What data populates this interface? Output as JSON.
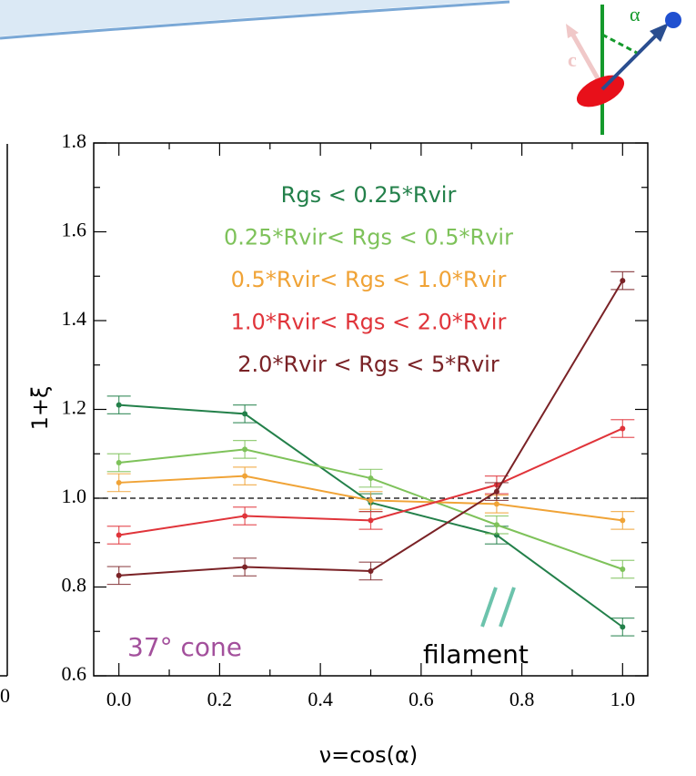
{
  "chart_data": {
    "type": "line",
    "xlabel": "ν=cos(α)",
    "ylabel": "1+ξ",
    "x": [
      0.0,
      0.25,
      0.5,
      0.75,
      1.0
    ],
    "series": [
      {
        "name": "Rgs < 0.25*Rvir",
        "color": "#23804a",
        "values": [
          1.21,
          1.19,
          0.99,
          0.917,
          0.71
        ],
        "errors": [
          0.02,
          0.02,
          0.02,
          0.02,
          0.02
        ]
      },
      {
        "name": "0.25*Rvir< Rgs < 0.5*Rvir",
        "color": "#7ec25a",
        "values": [
          1.08,
          1.11,
          1.045,
          0.94,
          0.84
        ],
        "errors": [
          0.02,
          0.02,
          0.02,
          0.02,
          0.02
        ]
      },
      {
        "name": "0.5*Rvir< Rgs < 1.0*Rvir",
        "color": "#f0a336",
        "values": [
          1.035,
          1.05,
          0.995,
          0.987,
          0.95
        ],
        "errors": [
          0.02,
          0.02,
          0.02,
          0.02,
          0.02
        ]
      },
      {
        "name": "1.0*Rvir< Rgs < 2.0*Rvir",
        "color": "#e0343a",
        "values": [
          0.917,
          0.96,
          0.95,
          1.03,
          1.157
        ],
        "errors": [
          0.02,
          0.02,
          0.02,
          0.02,
          0.02
        ]
      },
      {
        "name": "2.0*Rvir < Rgs < 5*Rvir",
        "color": "#7a2226",
        "values": [
          0.826,
          0.845,
          0.836,
          1.015,
          1.49
        ],
        "errors": [
          0.02,
          0.02,
          0.02,
          0.02,
          0.02
        ]
      }
    ],
    "xlim": [
      -0.05,
      1.05
    ],
    "ylim": [
      0.6,
      1.8
    ],
    "xticks": [
      {
        "value": 0.0,
        "label": "0.0"
      },
      0.2,
      0.4,
      0.6,
      0.8,
      {
        "value": 1.0,
        "label": "1.0"
      }
    ],
    "yticks": [
      0.6,
      0.8,
      {
        "value": 1.0,
        "label": "1.0"
      },
      1.2,
      1.4,
      1.6,
      1.8
    ],
    "xminorticks": [
      0.1,
      0.3,
      0.5,
      0.7,
      0.9
    ],
    "yminorticks": [
      0.7,
      0.9,
      1.1,
      1.3,
      1.5,
      1.7
    ],
    "hline": 1.0,
    "annotations": [
      "37° cone",
      "filament"
    ],
    "diagram_labels": [
      "α",
      "c"
    ],
    "left_panel_tick": "0"
  }
}
